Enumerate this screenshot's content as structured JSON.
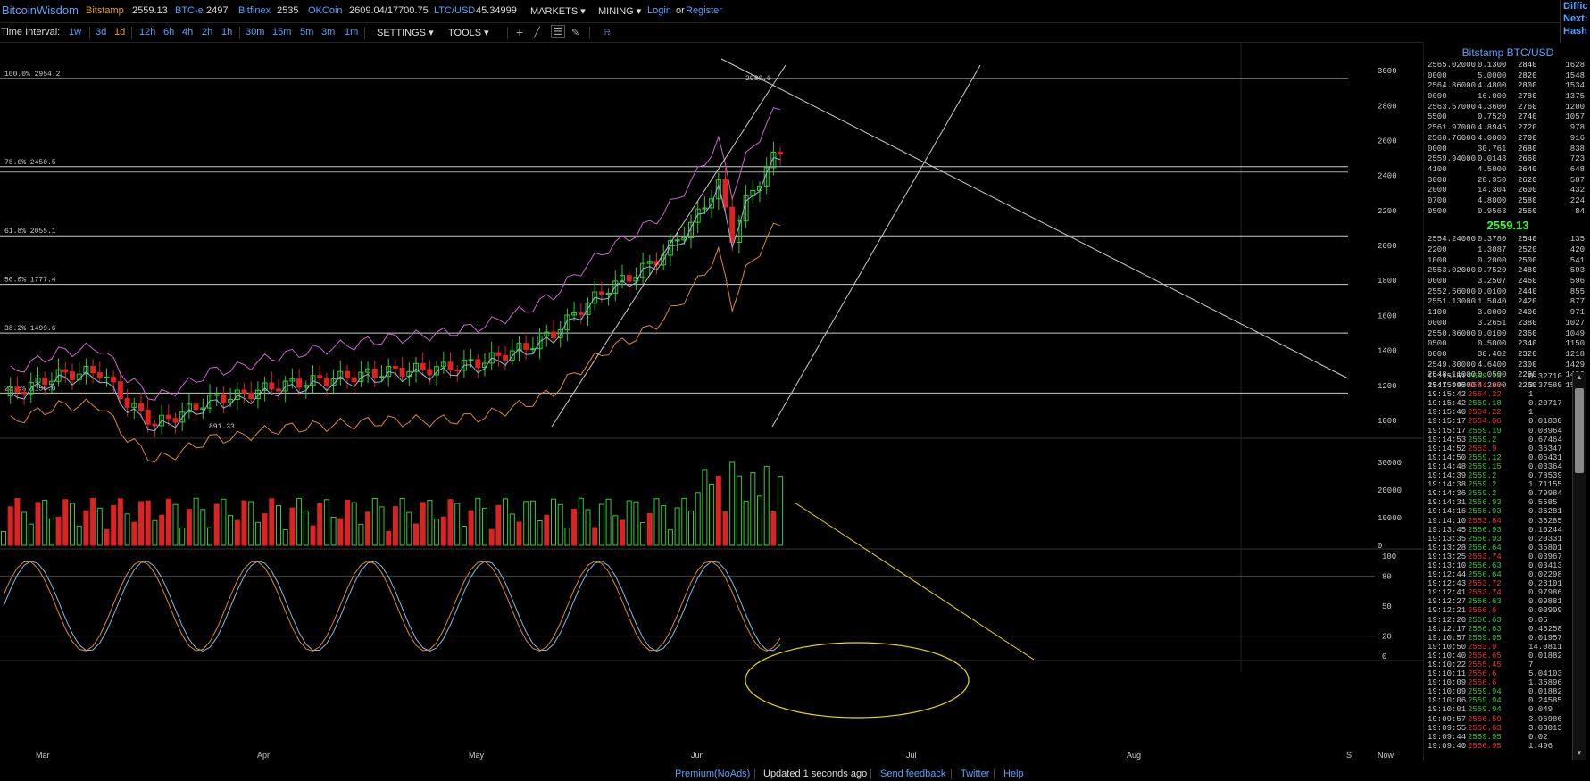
{
  "header": {
    "brand": "BitcoinWisdom",
    "tickers": [
      {
        "name": "Bitstamp",
        "value": "2559.13"
      },
      {
        "name": "BTC-e",
        "value": "2497"
      },
      {
        "name": "Bitfinex",
        "value": "2535"
      },
      {
        "name": "OKCoin",
        "value": "2609.04/17700.75"
      },
      {
        "name": "LTC/USD",
        "value": "45.34999"
      }
    ],
    "menus": {
      "markets": "MARKETS",
      "mining": "MINING"
    },
    "login": "Login",
    "or": "or",
    "register": "Register",
    "right_edge": [
      "Diffic",
      "Next:",
      "Hash"
    ]
  },
  "toolbar": {
    "time_interval_label": "Time Interval:",
    "intervals": [
      "1w",
      "3d",
      "1d",
      "12h",
      "6h",
      "4h",
      "2h",
      "1h",
      "30m",
      "15m",
      "5m",
      "3m",
      "1m"
    ],
    "selected_interval": "1d",
    "settings": "SETTINGS",
    "tools": "TOOLS"
  },
  "chart_data": {
    "type": "candlestick",
    "title": "",
    "x_labels": [
      "Mar",
      "Apr",
      "May",
      "Jun",
      "Jul",
      "Aug",
      "S",
      "Now"
    ],
    "price_axis": [
      3000,
      2800,
      2600,
      2400,
      2200,
      2000,
      1800,
      1600,
      1400,
      1200,
      1000
    ],
    "price_ylim": [
      900,
      3050
    ],
    "fib_levels": [
      {
        "label": "100.0% 2954.2",
        "value": 2954.2
      },
      {
        "label": "78.6% 2450.5",
        "value": 2450.5
      },
      {
        "label": "61.8% 2055.1",
        "value": 2055.1
      },
      {
        "label": "50.0% 1777.4",
        "value": 1777.4
      },
      {
        "label": "38.2% 1499.6",
        "value": 1499.6
      },
      {
        "label": "23.6% 1156.0",
        "value": 1156.0
      }
    ],
    "annotations": [
      {
        "label": "2980.0",
        "value": 2980.0
      },
      {
        "label": "891.33",
        "value": 891.33
      }
    ],
    "volume_axis": [
      30000,
      20000,
      10000,
      0
    ],
    "volume_ylim": [
      0,
      38000
    ],
    "stoch_axis": [
      100,
      80,
      50,
      20,
      0
    ],
    "colors": {
      "up": "#33cc33",
      "down": "#dd2222",
      "upper_band": "#cc66cc",
      "lower_band": "#dd8833",
      "mid_band": "#88bbdd",
      "trendline": "#cccccc",
      "volume_trend": "#eedd00",
      "ellipse": "#eedd00"
    }
  },
  "orderbook": {
    "title": "Bitstamp BTC/USD",
    "asks": [
      [
        "2565.02000",
        "0.1300",
        "2840",
        "1628"
      ],
      [
        "0000",
        "5.0000",
        "2820",
        "1548"
      ],
      [
        "2564.86000",
        "4.4800",
        "2800",
        "1534"
      ],
      [
        "0000",
        "16.000",
        "2780",
        "1375"
      ],
      [
        "2563.57000",
        "4.3600",
        "2760",
        "1200"
      ],
      [
        "5500",
        "0.7520",
        "2740",
        "1057"
      ],
      [
        "2561.97000",
        "4.8945",
        "2720",
        "978"
      ],
      [
        "2560.76000",
        "4.0000",
        "2700",
        "916"
      ],
      [
        "0000",
        "30.761",
        "2680",
        "838"
      ],
      [
        "2559.94000",
        "0.0143",
        "2660",
        "723"
      ],
      [
        "4100",
        "4.5000",
        "2640",
        "648"
      ],
      [
        "3000",
        "28.950",
        "2620",
        "587"
      ],
      [
        "2000",
        "14.304",
        "2600",
        "432"
      ],
      [
        "0700",
        "4.8000",
        "2580",
        "224"
      ],
      [
        "0500",
        "0.9563",
        "2560",
        "84"
      ]
    ],
    "last": "2559.13",
    "bids": [
      [
        "2554.24000",
        "0.3780",
        "2540",
        "135"
      ],
      [
        "2200",
        "1.3087",
        "2520",
        "420"
      ],
      [
        "1000",
        "0.2000",
        "2500",
        "541"
      ],
      [
        "2553.02000",
        "0.7520",
        "2480",
        "593"
      ],
      [
        "0000",
        "3.2507",
        "2460",
        "596"
      ],
      [
        "2552.56000",
        "0.0100",
        "2440",
        "855"
      ],
      [
        "2551.13000",
        "1.5040",
        "2420",
        "877"
      ],
      [
        "1100",
        "3.0000",
        "2400",
        "971"
      ],
      [
        "0000",
        "3.2651",
        "2380",
        "1027"
      ],
      [
        "2550.86000",
        "0.0100",
        "2360",
        "1049"
      ],
      [
        "0500",
        "0.5000",
        "2340",
        "1150"
      ],
      [
        "0000",
        "30.402",
        "2320",
        "1218"
      ],
      [
        "2549.30000",
        "4.6400",
        "2300",
        "1429"
      ],
      [
        "2548.11000",
        "0.0500",
        "2280",
        "1498"
      ],
      [
        "2547.99000",
        "4.2000",
        "2260",
        "1562"
      ]
    ]
  },
  "trades": [
    [
      "19:15:51",
      "2559.13",
      "0.32710",
      "up"
    ],
    [
      "19:15:45",
      "2554.25",
      "3.37580",
      "dn"
    ],
    [
      "19:15:42",
      "2554.22",
      "1",
      "dn"
    ],
    [
      "19:15:42",
      "2559.18",
      "0.20717",
      "up"
    ],
    [
      "19:15:40",
      "2554.22",
      "1",
      "dn"
    ],
    [
      "19:15:17",
      "2554.06",
      "0.01830",
      "dn"
    ],
    [
      "19:15:17",
      "2559.19",
      "0.08964",
      "up"
    ],
    [
      "19:14:53",
      "2559.2",
      "0.67464",
      "up"
    ],
    [
      "19:14:52",
      "2553.9",
      "0.36347",
      "dn"
    ],
    [
      "19:14:50",
      "2559.12",
      "0.05431",
      "up"
    ],
    [
      "19:14:48",
      "2559.15",
      "0.03364",
      "up"
    ],
    [
      "19:14:39",
      "2559.2",
      "0.78539",
      "up"
    ],
    [
      "19:14:38",
      "2559.2",
      "1.71155",
      "up"
    ],
    [
      "19:14:36",
      "2559.2",
      "0.79984",
      "up"
    ],
    [
      "19:14:31",
      "2556.93",
      "0.5585",
      "up"
    ],
    [
      "19:14:16",
      "2556.93",
      "0.36281",
      "up"
    ],
    [
      "19:14:10",
      "2553.84",
      "0.36285",
      "dn"
    ],
    [
      "19:13:45",
      "2556.93",
      "0.10244",
      "up"
    ],
    [
      "19:13:35",
      "2556.93",
      "0.20331",
      "up"
    ],
    [
      "19:13:28",
      "2556.64",
      "0.35801",
      "up"
    ],
    [
      "19:13:25",
      "2553.74",
      "0.03967",
      "dn"
    ],
    [
      "19:13:10",
      "2556.63",
      "0.03413",
      "up"
    ],
    [
      "19:12:44",
      "2556.64",
      "0.02298",
      "up"
    ],
    [
      "19:12:43",
      "2553.72",
      "0.23101",
      "dn"
    ],
    [
      "19:12:41",
      "2553.74",
      "0.97986",
      "dn"
    ],
    [
      "19:12:27",
      "2556.63",
      "0.09881",
      "up"
    ],
    [
      "19:12:21",
      "2556.6",
      "0.00909",
      "dn"
    ],
    [
      "19:12:20",
      "2556.63",
      "0.05",
      "up"
    ],
    [
      "19:12:17",
      "2556.63",
      "0.45258",
      "up"
    ],
    [
      "19:10:57",
      "2559.95",
      "0.01957",
      "up"
    ],
    [
      "19:10:50",
      "2553.9",
      "14.0811",
      "dn"
    ],
    [
      "19:10:40",
      "2556.65",
      "0.01882",
      "dn"
    ],
    [
      "19:10:22",
      "2555.45",
      "7",
      "dn"
    ],
    [
      "19:10:11",
      "2556.6",
      "5.04103",
      "dn"
    ],
    [
      "19:10:09",
      "2556.6",
      "1.35896",
      "dn"
    ],
    [
      "19:10:09",
      "2559.94",
      "0.01882",
      "up"
    ],
    [
      "19:10:06",
      "2559.94",
      "0.24585",
      "up"
    ],
    [
      "19:10:01",
      "2559.94",
      "0.049",
      "up"
    ],
    [
      "19:09:57",
      "2556.59",
      "3.96986",
      "dn"
    ],
    [
      "19:09:55",
      "2556.63",
      "3.03013",
      "dn"
    ],
    [
      "19:09:44",
      "2559.95",
      "0.02",
      "up"
    ],
    [
      "19:09:40",
      "2556.95",
      "1.496",
      "dn"
    ]
  ],
  "footer": {
    "premium": "Premium(NoAds)",
    "updated": "Updated 1 seconds ago",
    "feedback": "Send feedback",
    "twitter": "Twitter",
    "help": "Help"
  }
}
